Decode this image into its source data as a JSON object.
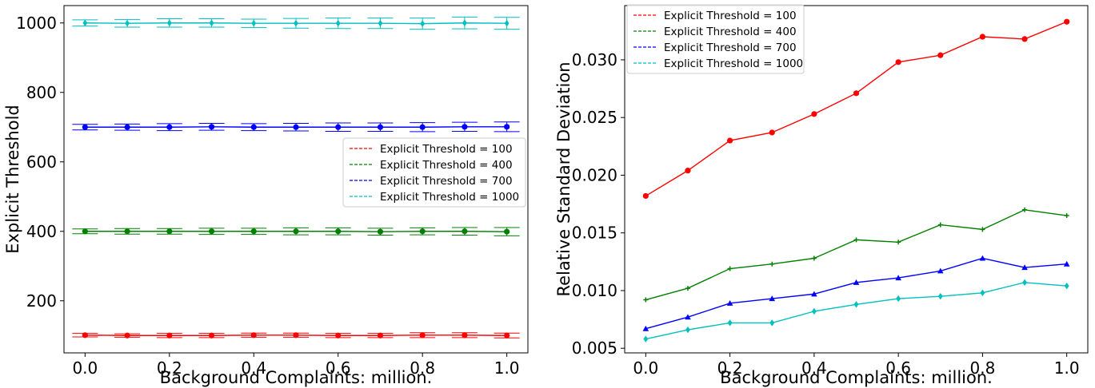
{
  "chart_data": [
    {
      "type": "line",
      "xlabel": "Background Complaints: million.",
      "ylabel": "Explicit Threshold",
      "x": [
        0.0,
        0.1,
        0.2,
        0.3,
        0.4,
        0.5,
        0.6,
        0.7,
        0.8,
        0.9,
        1.0
      ],
      "x_tick_labels": [
        "0.0",
        "0.2",
        "0.4",
        "0.6",
        "0.8",
        "1.0"
      ],
      "y_tick_labels": [
        "200",
        "400",
        "600",
        "800",
        "1000"
      ],
      "xlim": [
        -0.05,
        1.05
      ],
      "ylim": [
        50,
        1050
      ],
      "error_bars": true,
      "grid": false,
      "legend": "center-right",
      "series": [
        {
          "name": "Explicit Threshold = 100",
          "color": "#ff0000",
          "marker": "circle",
          "values": [
            101,
            100,
            100,
            100,
            101,
            101,
            100,
            100,
            101,
            101,
            100
          ],
          "errors": [
            5,
            5,
            6,
            6,
            6,
            6,
            6,
            6,
            7,
            7,
            7
          ]
        },
        {
          "name": "Explicit Threshold = 400",
          "color": "#008000",
          "marker": "circle",
          "values": [
            400,
            400,
            400,
            400,
            400,
            400,
            400,
            399,
            400,
            400,
            399
          ],
          "errors": [
            7,
            8,
            8,
            9,
            9,
            10,
            10,
            10,
            10,
            11,
            12
          ]
        },
        {
          "name": "Explicit Threshold = 700",
          "color": "#0000ff",
          "marker": "circle",
          "values": [
            700,
            700,
            700,
            701,
            700,
            700,
            700,
            700,
            700,
            701,
            701
          ],
          "errors": [
            8,
            9,
            10,
            10,
            10,
            11,
            12,
            12,
            13,
            13,
            14
          ]
        },
        {
          "name": "Explicit Threshold = 1000",
          "color": "#00bfbf",
          "marker": "diamond",
          "values": [
            1000,
            999,
            1000,
            1000,
            999,
            999,
            999,
            999,
            998,
            1000,
            999
          ],
          "errors": [
            9,
            11,
            12,
            12,
            12,
            14,
            15,
            15,
            16,
            17,
            17
          ]
        }
      ]
    },
    {
      "type": "line",
      "xlabel": "Background Complaints: million.",
      "ylabel": "Relative Standard Deviation",
      "x": [
        0.0,
        0.1,
        0.2,
        0.3,
        0.4,
        0.5,
        0.6,
        0.7,
        0.8,
        0.9,
        1.0
      ],
      "x_tick_labels": [
        "0.0",
        "0.2",
        "0.4",
        "0.6",
        "0.8",
        "1.0"
      ],
      "y_tick_labels": [
        "0.005",
        "0.010",
        "0.015",
        "0.020",
        "0.025",
        "0.030"
      ],
      "xlim": [
        -0.05,
        1.05
      ],
      "ylim": [
        0.0046,
        0.0347
      ],
      "grid": false,
      "legend": "top-left",
      "series": [
        {
          "name": "Explicit Threshold = 100",
          "color": "#ff0000",
          "marker": "circle",
          "values": [
            0.0182,
            0.0204,
            0.023,
            0.0237,
            0.0253,
            0.0271,
            0.0298,
            0.0304,
            0.032,
            0.0318,
            0.0333
          ]
        },
        {
          "name": "Explicit Threshold = 400",
          "color": "#008000",
          "marker": "plus",
          "values": [
            0.0092,
            0.0102,
            0.0119,
            0.0123,
            0.0128,
            0.0144,
            0.0142,
            0.0157,
            0.0153,
            0.017,
            0.0165
          ]
        },
        {
          "name": "Explicit Threshold = 700",
          "color": "#0000ff",
          "marker": "triangle",
          "values": [
            0.0067,
            0.0077,
            0.0089,
            0.0093,
            0.0097,
            0.0107,
            0.0111,
            0.0117,
            0.0128,
            0.012,
            0.0123
          ]
        },
        {
          "name": "Explicit Threshold = 1000",
          "color": "#00bfbf",
          "marker": "diamond",
          "values": [
            0.0058,
            0.0066,
            0.0072,
            0.0072,
            0.0082,
            0.0088,
            0.0093,
            0.0095,
            0.0098,
            0.0107,
            0.0104
          ]
        }
      ]
    }
  ]
}
